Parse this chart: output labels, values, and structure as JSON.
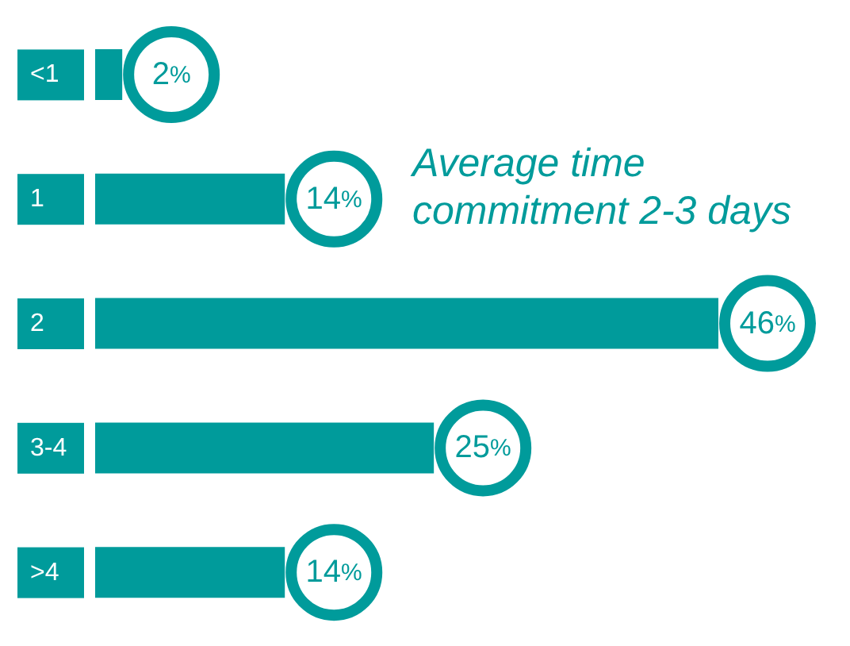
{
  "chart_data": {
    "type": "bar",
    "orientation": "horizontal",
    "categories": [
      "<1",
      "1",
      "2",
      "3-4",
      ">4"
    ],
    "values": [
      2,
      14,
      46,
      25,
      14
    ],
    "color": "#009b9b",
    "value_labels": [
      "2%",
      "14%",
      "46%",
      "25%",
      "14%"
    ],
    "annotations": [
      "Average time commitment 2-3 days"
    ]
  }
}
